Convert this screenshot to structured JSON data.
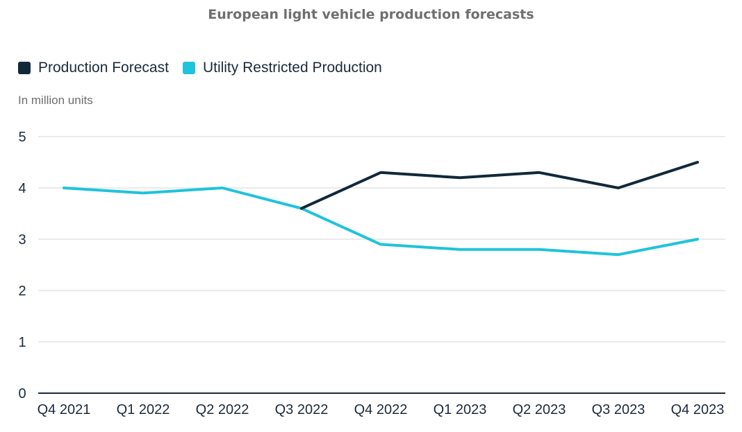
{
  "chart_data": {
    "type": "line",
    "title": "European light vehicle production forecasts",
    "unit_label": "In million units",
    "xlabel": "",
    "ylabel": "",
    "ylim": [
      0,
      5
    ],
    "yticks": [
      "0",
      "1",
      "2",
      "3",
      "4",
      "5"
    ],
    "categories": [
      "Q4 2021",
      "Q1 2022",
      "Q2 2022",
      "Q3 2022",
      "Q4 2022",
      "Q1 2023",
      "Q2 2023",
      "Q3 2023",
      "Q4 2023"
    ],
    "grid": true,
    "legend_position": "top-left",
    "series": [
      {
        "name": "Production Forecast",
        "color": "#10283a",
        "values": [
          null,
          null,
          null,
          3.6,
          4.3,
          4.2,
          4.3,
          4.0,
          4.5
        ]
      },
      {
        "name": "Utility Restricted Production",
        "color": "#1ec3dc",
        "values": [
          4.0,
          3.9,
          4.0,
          3.6,
          2.9,
          2.8,
          2.8,
          2.7,
          3.0
        ]
      }
    ]
  }
}
